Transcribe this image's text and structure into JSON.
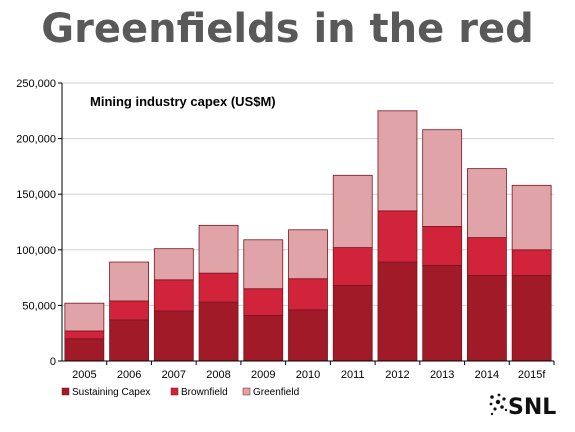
{
  "page": {
    "title": "Greenfields in the red",
    "logo_text": "SNL"
  },
  "chart_data": {
    "type": "bar",
    "stacked": true,
    "title": "Mining industry capex (US$M)",
    "xlabel": "",
    "ylabel": "",
    "categories": [
      "2005",
      "2006",
      "2007",
      "2008",
      "2009",
      "2010",
      "2011",
      "2012",
      "2013",
      "2014",
      "2015f"
    ],
    "ylim": [
      0,
      250000
    ],
    "yticks": [
      0,
      50000,
      100000,
      150000,
      200000,
      250000
    ],
    "ytick_labels": [
      "0",
      "50,000",
      "100,000",
      "150,000",
      "200,000",
      "250,000"
    ],
    "grid": true,
    "legend_position": "bottom",
    "series": [
      {
        "name": "Sustaining Capex",
        "color": "#a11a28",
        "values": [
          20000,
          37000,
          45000,
          53000,
          41000,
          46000,
          68000,
          89000,
          86000,
          77000,
          77000
        ]
      },
      {
        "name": "Brownfield",
        "color": "#d1243a",
        "values": [
          7000,
          17000,
          28000,
          26000,
          24000,
          28000,
          34000,
          46000,
          35000,
          34000,
          23000
        ]
      },
      {
        "name": "Greenfield",
        "color": "#dfa3a8",
        "values": [
          25000,
          35000,
          28000,
          43000,
          44000,
          44000,
          65000,
          90000,
          87000,
          62000,
          58000
        ]
      }
    ]
  }
}
